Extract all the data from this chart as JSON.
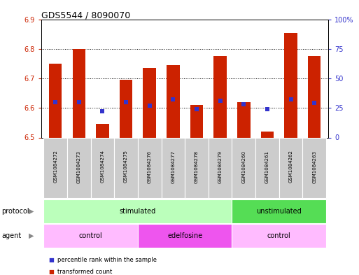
{
  "title": "GDS5544 / 8090070",
  "samples": [
    "GSM1084272",
    "GSM1084273",
    "GSM1084274",
    "GSM1084275",
    "GSM1084276",
    "GSM1084277",
    "GSM1084278",
    "GSM1084279",
    "GSM1084260",
    "GSM1084261",
    "GSM1084262",
    "GSM1084263"
  ],
  "transformed_count": [
    6.75,
    6.8,
    6.545,
    6.695,
    6.735,
    6.745,
    6.61,
    6.775,
    6.62,
    6.52,
    6.855,
    6.775
  ],
  "percentile_rank": [
    30,
    30,
    22,
    30,
    27,
    32,
    24,
    31,
    28,
    24,
    32,
    29
  ],
  "ylim_left": [
    6.5,
    6.9
  ],
  "ylim_right": [
    0,
    100
  ],
  "yticks_left": [
    6.5,
    6.6,
    6.7,
    6.8,
    6.9
  ],
  "yticks_right": [
    0,
    25,
    50,
    75,
    100
  ],
  "ytick_labels_right": [
    "0",
    "25",
    "50",
    "75",
    "100%"
  ],
  "bar_color": "#cc2200",
  "dot_color": "#3333cc",
  "bar_bottom": 6.5,
  "protocol_groups": [
    {
      "label": "stimulated",
      "start": 0,
      "end": 7,
      "color": "#bbffbb"
    },
    {
      "label": "unstimulated",
      "start": 8,
      "end": 11,
      "color": "#55dd55"
    }
  ],
  "agent_groups": [
    {
      "label": "control",
      "start": 0,
      "end": 3,
      "color": "#ffbbff"
    },
    {
      "label": "edelfosine",
      "start": 4,
      "end": 7,
      "color": "#ee55ee"
    },
    {
      "label": "control",
      "start": 8,
      "end": 11,
      "color": "#ffbbff"
    }
  ],
  "left_axis_color": "#cc2200",
  "right_axis_color": "#3333cc",
  "sample_bg_color": "#cccccc",
  "sample_border_color": "#ffffff",
  "legend": [
    {
      "label": "transformed count",
      "color": "#cc2200"
    },
    {
      "label": "percentile rank within the sample",
      "color": "#3333cc"
    }
  ]
}
